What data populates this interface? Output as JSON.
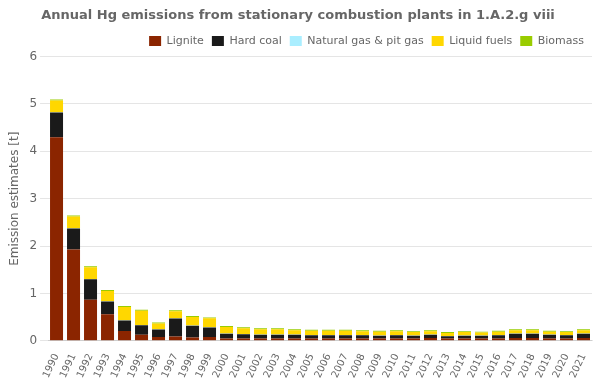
{
  "chart_data": {
    "type": "bar",
    "title": "Annual Hg emissions from stationary combustion plants in 1.A.2.g viii",
    "ylabel": "Emission estimates [t]",
    "categories": [
      "1990",
      "1991",
      "1992",
      "1993",
      "1994",
      "1995",
      "1996",
      "1997",
      "1998",
      "1999",
      "2000",
      "2001",
      "2002",
      "2003",
      "2004",
      "2005",
      "2006",
      "2007",
      "2008",
      "2009",
      "2010",
      "2011",
      "2012",
      "2013",
      "2014",
      "2015",
      "2016",
      "2017",
      "2018",
      "2019",
      "2020",
      "2021"
    ],
    "series": [
      {
        "name": "Lignite",
        "color": "#8B2500",
        "values": [
          4.3,
          1.93,
          0.87,
          0.56,
          0.21,
          0.13,
          0.08,
          0.09,
          0.07,
          0.08,
          0.05,
          0.05,
          0.05,
          0.05,
          0.05,
          0.05,
          0.05,
          0.05,
          0.05,
          0.05,
          0.05,
          0.05,
          0.06,
          0.05,
          0.05,
          0.05,
          0.05,
          0.06,
          0.06,
          0.05,
          0.05,
          0.06
        ]
      },
      {
        "name": "Hard coal",
        "color": "#1a1a1a",
        "values": [
          0.52,
          0.44,
          0.43,
          0.27,
          0.22,
          0.2,
          0.16,
          0.38,
          0.25,
          0.2,
          0.1,
          0.09,
          0.08,
          0.08,
          0.08,
          0.07,
          0.07,
          0.07,
          0.07,
          0.06,
          0.07,
          0.06,
          0.07,
          0.05,
          0.06,
          0.06,
          0.07,
          0.09,
          0.09,
          0.08,
          0.07,
          0.09
        ]
      },
      {
        "name": "Natural gas & pit gas",
        "color": "#aaeeff",
        "values": [
          0.005,
          0.005,
          0.005,
          0.005,
          0.005,
          0.005,
          0.005,
          0.005,
          0.005,
          0.005,
          0.005,
          0.005,
          0.005,
          0.005,
          0.005,
          0.005,
          0.005,
          0.005,
          0.005,
          0.005,
          0.005,
          0.005,
          0.005,
          0.005,
          0.005,
          0.005,
          0.005,
          0.005,
          0.005,
          0.005,
          0.005,
          0.005
        ]
      },
      {
        "name": "Liquid fuels",
        "color": "#FFD700",
        "values": [
          0.25,
          0.25,
          0.25,
          0.22,
          0.28,
          0.3,
          0.12,
          0.15,
          0.18,
          0.19,
          0.14,
          0.12,
          0.11,
          0.11,
          0.09,
          0.09,
          0.09,
          0.09,
          0.08,
          0.08,
          0.08,
          0.07,
          0.07,
          0.06,
          0.07,
          0.06,
          0.07,
          0.07,
          0.07,
          0.06,
          0.06,
          0.07
        ]
      },
      {
        "name": "Biomass",
        "color": "#99cc00",
        "values": [
          0.02,
          0.02,
          0.02,
          0.02,
          0.02,
          0.02,
          0.02,
          0.02,
          0.02,
          0.02,
          0.02,
          0.02,
          0.02,
          0.02,
          0.02,
          0.02,
          0.02,
          0.02,
          0.02,
          0.02,
          0.02,
          0.02,
          0.02,
          0.02,
          0.02,
          0.02,
          0.02,
          0.02,
          0.02,
          0.02,
          0.02,
          0.02
        ]
      }
    ],
    "stacked": true,
    "ylim": [
      0,
      6
    ],
    "yticks": [
      0,
      1,
      2,
      3,
      4,
      5,
      6
    ],
    "grid": true,
    "legend": "upper right"
  }
}
